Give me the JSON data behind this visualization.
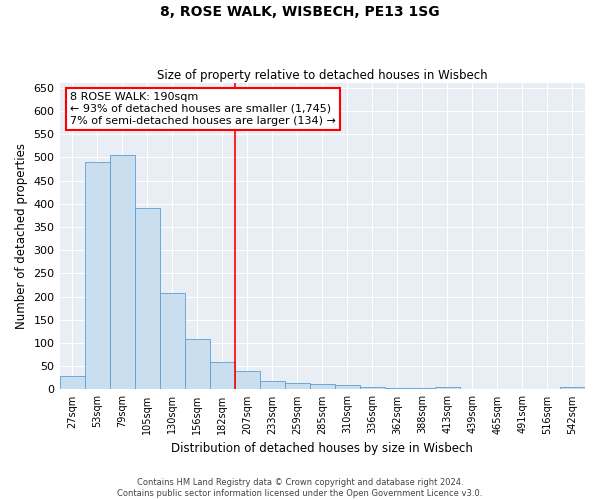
{
  "title": "8, ROSE WALK, WISBECH, PE13 1SG",
  "subtitle": "Size of property relative to detached houses in Wisbech",
  "xlabel": "Distribution of detached houses by size in Wisbech",
  "ylabel": "Number of detached properties",
  "categories": [
    "27sqm",
    "53sqm",
    "79sqm",
    "105sqm",
    "130sqm",
    "156sqm",
    "182sqm",
    "207sqm",
    "233sqm",
    "259sqm",
    "285sqm",
    "310sqm",
    "336sqm",
    "362sqm",
    "388sqm",
    "413sqm",
    "439sqm",
    "465sqm",
    "491sqm",
    "516sqm",
    "542sqm"
  ],
  "values": [
    30,
    490,
    505,
    390,
    208,
    108,
    60,
    40,
    18,
    13,
    11,
    10,
    5,
    4,
    4,
    5,
    1,
    1,
    0,
    1,
    5
  ],
  "bar_color": "#c9dff0",
  "bar_edge_color": "#5a9fd4",
  "vline_color": "red",
  "annotation_line1": "8 ROSE WALK: 190sqm",
  "annotation_line2": "← 93% of detached houses are smaller (1,745)",
  "annotation_line3": "7% of semi-detached houses are larger (134) →",
  "annotation_box_color": "white",
  "annotation_box_edge_color": "red",
  "ylim": [
    0,
    660
  ],
  "yticks": [
    0,
    50,
    100,
    150,
    200,
    250,
    300,
    350,
    400,
    450,
    500,
    550,
    600,
    650
  ],
  "background_color": "#e8eef4",
  "footer_line1": "Contains HM Land Registry data © Crown copyright and database right 2024.",
  "footer_line2": "Contains public sector information licensed under the Open Government Licence v3.0."
}
